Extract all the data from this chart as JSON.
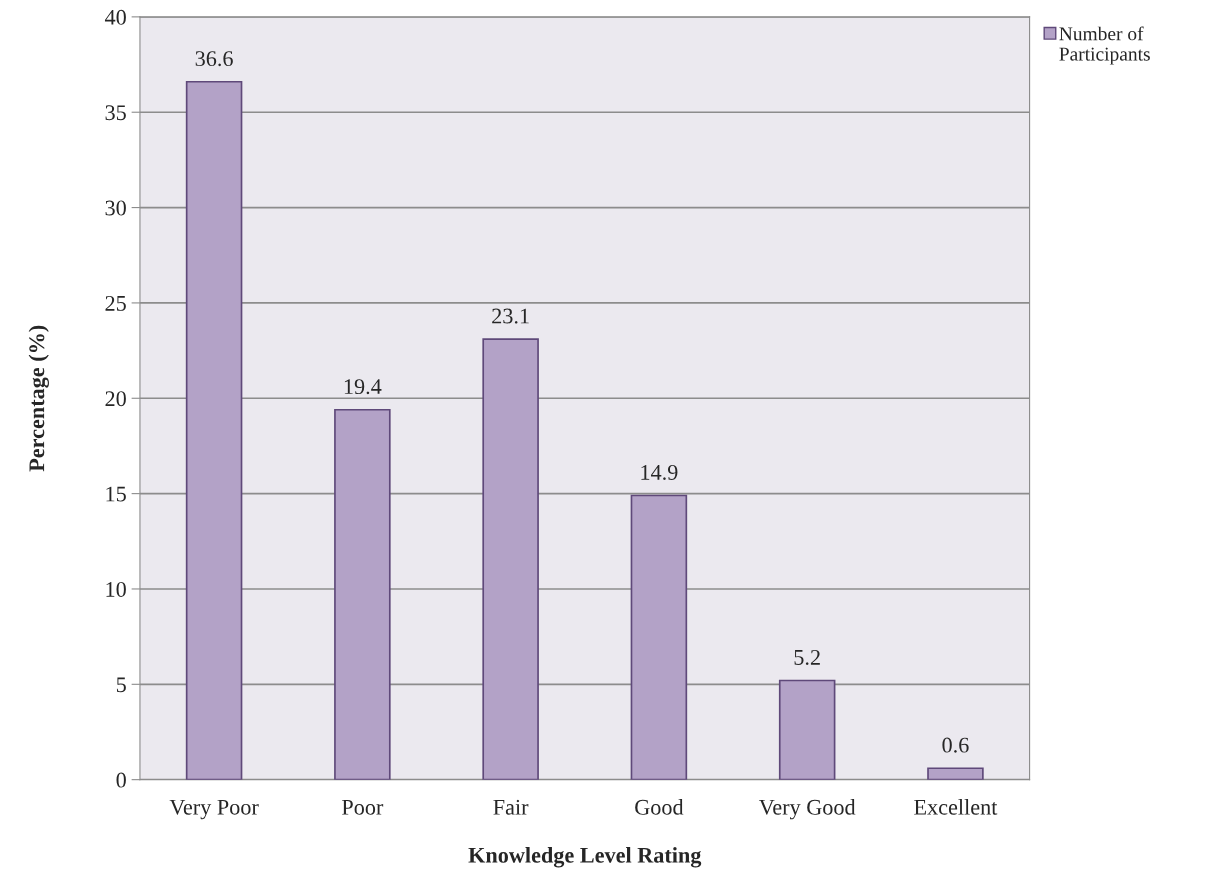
{
  "chart_data": {
    "type": "bar",
    "xlabel": "Knowledge Level Rating",
    "ylabel": "Percentage (%)",
    "categories": [
      "Very Poor",
      "Poor",
      "Fair",
      "Good",
      "Very Good",
      "Excellent"
    ],
    "series": [
      {
        "name": "Number of Participants",
        "color": "#b3a2c7",
        "values": [
          36.6,
          19.4,
          23.1,
          14.9,
          5.2,
          0.6
        ]
      }
    ],
    "ylim": [
      0,
      40
    ],
    "yticks": [
      0,
      5,
      10,
      15,
      20,
      25,
      30,
      35,
      40
    ],
    "grid": "y",
    "legend": "top right",
    "data_labels": true
  }
}
